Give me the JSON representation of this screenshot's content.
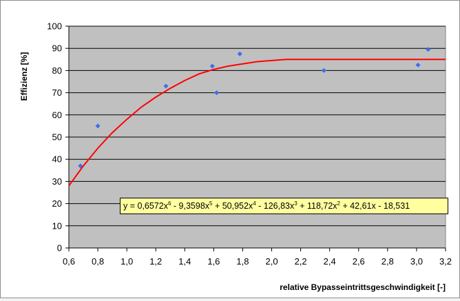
{
  "chart_data": {
    "type": "scatter",
    "xlabel": "relative Bypasseintrittsgeschwindigkeit [-]",
    "ylabel": "Effizienz [%]",
    "xlim": [
      0.6,
      3.2
    ],
    "ylim": [
      0,
      100
    ],
    "x_ticks": [
      "0,6",
      "0,8",
      "1,0",
      "1,2",
      "1,4",
      "1,6",
      "1,8",
      "2,0",
      "2,2",
      "2,4",
      "2,6",
      "2,8",
      "3,0",
      "3,2"
    ],
    "y_ticks": [
      "0",
      "10",
      "20",
      "30",
      "40",
      "50",
      "60",
      "70",
      "80",
      "90",
      "100"
    ],
    "grid": "horizontal",
    "plot_background": "#c0c0c0",
    "point_color": "#3a6df0",
    "trend_color": "#ff0000",
    "points": [
      {
        "x": 0.68,
        "y": 37
      },
      {
        "x": 0.8,
        "y": 55
      },
      {
        "x": 1.27,
        "y": 73
      },
      {
        "x": 1.59,
        "y": 82
      },
      {
        "x": 1.62,
        "y": 70
      },
      {
        "x": 1.78,
        "y": 87.5
      },
      {
        "x": 2.36,
        "y": 80
      },
      {
        "x": 3.01,
        "y": 82.5
      },
      {
        "x": 3.08,
        "y": 89.5
      }
    ],
    "trendline": {
      "x": [
        0.6,
        0.7,
        0.8,
        0.9,
        1.0,
        1.1,
        1.2,
        1.3,
        1.4,
        1.5,
        1.6,
        1.7,
        1.8,
        1.9,
        2.0,
        2.1,
        2.2,
        2.3,
        2.4,
        2.5,
        2.6,
        2.7,
        2.8,
        2.9,
        3.0,
        3.1,
        3.2
      ],
      "y": [
        28,
        37,
        45,
        52,
        58,
        63.5,
        68,
        72,
        75.5,
        78.5,
        80.5,
        82,
        83,
        84,
        84.5,
        85,
        85,
        85,
        85,
        85,
        85,
        85,
        85,
        85,
        85,
        85,
        85
      ]
    },
    "equation": {
      "parts": [
        {
          "t": "y = 0,6572x"
        },
        {
          "sup": "6"
        },
        {
          "t": " - 9,3598x"
        },
        {
          "sup": "5"
        },
        {
          "t": " + 50,952x"
        },
        {
          "sup": "4"
        },
        {
          "t": " - 126,83x"
        },
        {
          "sup": "3"
        },
        {
          "t": " + 118,72x"
        },
        {
          "sup": "2"
        },
        {
          "t": " + 42,61x - 18,531"
        }
      ]
    }
  }
}
